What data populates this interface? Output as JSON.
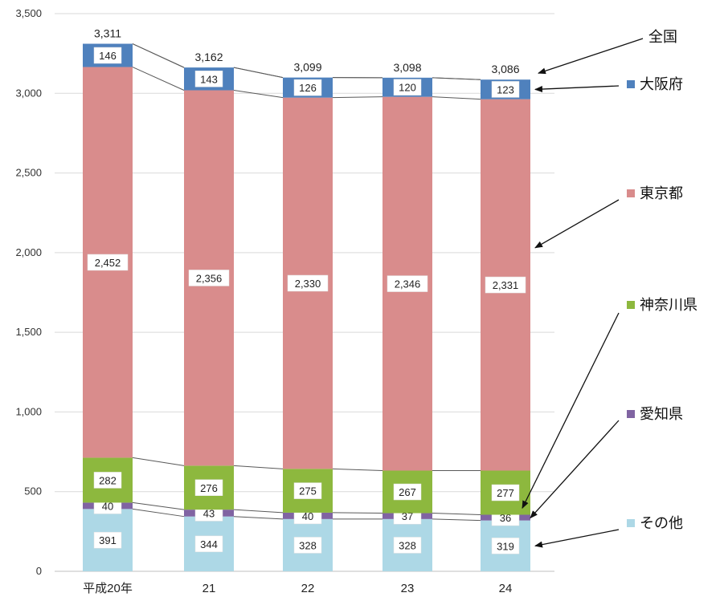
{
  "chart_data": {
    "type": "bar",
    "stacked": true,
    "categories": [
      "平成20年",
      "21",
      "22",
      "23",
      "24"
    ],
    "ylim": [
      0,
      3500
    ],
    "yticks": [
      0,
      500,
      1000,
      1500,
      2000,
      2500,
      3000,
      3500
    ],
    "ytick_labels": [
      "0",
      "500",
      "1,000",
      "1,500",
      "2,000",
      "2,500",
      "3,000",
      "3,500"
    ],
    "grid": true,
    "series": [
      {
        "name": "その他",
        "color": "#ADD8E6",
        "values": [
          391,
          344,
          328,
          328,
          319
        ],
        "labels": [
          "391",
          "344",
          "328",
          "328",
          "319"
        ]
      },
      {
        "name": "愛知県",
        "color": "#8064A2",
        "values": [
          40,
          43,
          40,
          37,
          36
        ],
        "labels": [
          "40",
          "43",
          "40",
          "37",
          "36"
        ]
      },
      {
        "name": "神奈川県",
        "color": "#8DB83E",
        "values": [
          282,
          276,
          275,
          267,
          277
        ],
        "labels": [
          "282",
          "276",
          "275",
          "267",
          "277"
        ]
      },
      {
        "name": "東京都",
        "color": "#D98C8C",
        "values": [
          2452,
          2356,
          2330,
          2346,
          2331
        ],
        "labels": [
          "2,452",
          "2,356",
          "2,330",
          "2,346",
          "2,331"
        ]
      },
      {
        "name": "大阪府",
        "color": "#4F81BD",
        "values": [
          146,
          143,
          126,
          120,
          123
        ],
        "labels": [
          "146",
          "143",
          "126",
          "120",
          "123"
        ]
      }
    ],
    "totals": [
      3311,
      3162,
      3099,
      3098,
      3086
    ],
    "total_labels": [
      "3,311",
      "3,162",
      "3,099",
      "3,098",
      "3,086"
    ],
    "total_legend": "全国",
    "legend_placement": "right"
  }
}
